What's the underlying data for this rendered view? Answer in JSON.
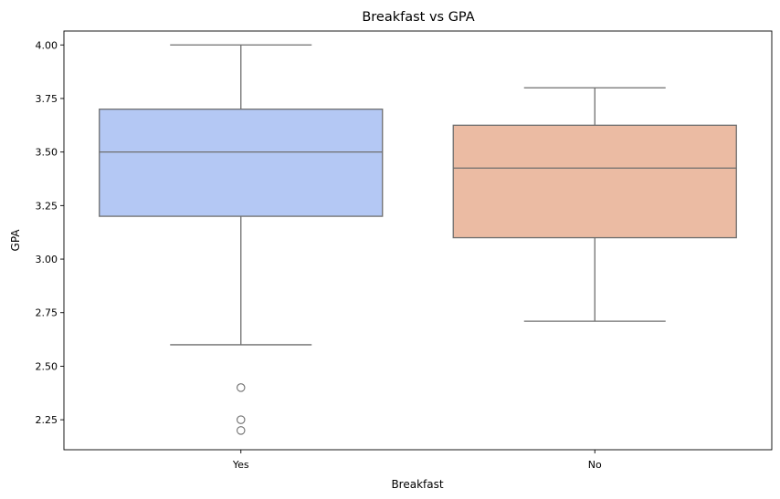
{
  "chart_data": {
    "type": "box",
    "title": "Breakfast vs GPA",
    "xlabel": "Breakfast",
    "ylabel": "GPA",
    "ylim": [
      2.11,
      4.065
    ],
    "yticks": [
      2.25,
      2.5,
      2.75,
      3.0,
      3.25,
      3.5,
      3.75,
      4.0
    ],
    "ytick_labels": [
      "2.25",
      "2.50",
      "2.75",
      "3.00",
      "3.25",
      "3.50",
      "3.75",
      "4.00"
    ],
    "grid": false,
    "categories": [
      "Yes",
      "No"
    ],
    "boxes": [
      {
        "category": "Yes",
        "whisker_low": 2.6,
        "q1": 3.2,
        "median": 3.5,
        "q3": 3.7,
        "whisker_high": 4.0,
        "outliers": [
          2.4,
          2.25,
          2.2
        ],
        "color": "#b4c8f4"
      },
      {
        "category": "No",
        "whisker_low": 2.71,
        "q1": 3.1,
        "median": 3.425,
        "q3": 3.625,
        "whisker_high": 3.8,
        "outliers": [],
        "color": "#ebbba3"
      }
    ],
    "line_color": "#6e6e6e"
  }
}
